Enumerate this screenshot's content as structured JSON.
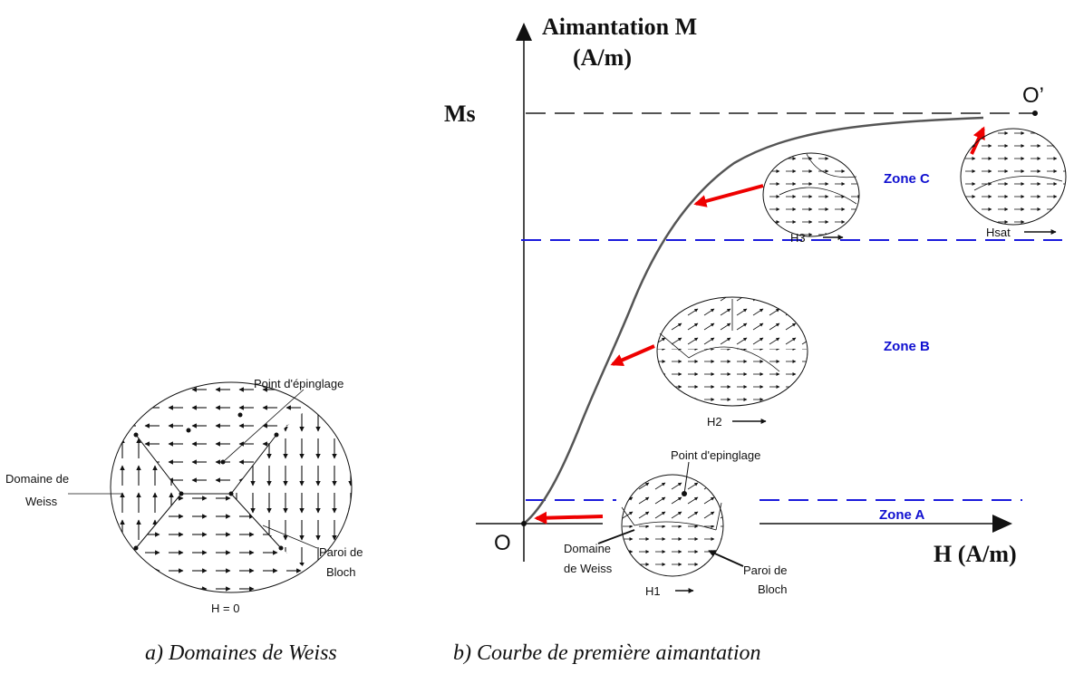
{
  "left": {
    "pinning": "Point d'épinglage",
    "weiss": [
      "Domaine de",
      "Weiss"
    ],
    "bloch": [
      "Paroi de",
      "Bloch"
    ],
    "field": "H = 0",
    "caption": "a) Domaines de Weiss"
  },
  "right": {
    "y_axis": [
      "Aimantation M",
      "(A/m)"
    ],
    "ms": "Ms",
    "origin": "O",
    "sat_point": "O’",
    "x_axis": "H (A/m)",
    "zones": [
      "Zone A",
      "Zone B",
      "Zone C"
    ],
    "fields": [
      "H1",
      "H2",
      "H3",
      "Hsat"
    ],
    "pinning": "Point d'epinglage",
    "weiss": [
      "Domaine",
      "de Weiss"
    ],
    "bloch": [
      "Paroi de",
      "Bloch"
    ],
    "caption": "b) Courbe de première aimantation"
  }
}
